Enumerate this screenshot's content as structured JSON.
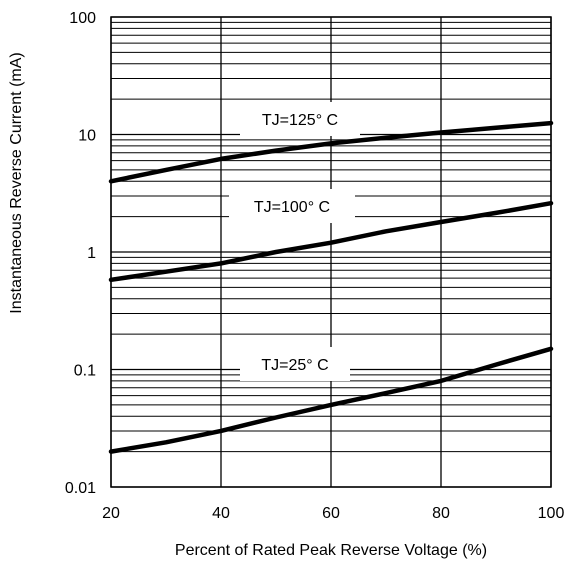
{
  "chart_data": {
    "type": "line",
    "title": "",
    "xlabel": "Percent of Rated Peak Reverse Voltage (%)",
    "ylabel": "Instantaneous Reverse Current (mA)",
    "xlim": [
      20,
      100
    ],
    "ylim": [
      0.01,
      100
    ],
    "yscale": "log",
    "grid": true,
    "x_ticks": [
      "20",
      "40",
      "60",
      "80",
      "100"
    ],
    "y_ticks": [
      "0.01",
      "0.1",
      "1",
      "10",
      "100"
    ],
    "series": [
      {
        "name": "TJ=125° C",
        "x": [
          20,
          30,
          40,
          50,
          60,
          70,
          80,
          90,
          100
        ],
        "y": [
          4.0,
          5.0,
          6.2,
          7.3,
          8.4,
          9.4,
          10.4,
          11.4,
          12.5
        ]
      },
      {
        "name": "TJ=100° C",
        "x": [
          20,
          30,
          40,
          50,
          60,
          70,
          80,
          90,
          100
        ],
        "y": [
          0.58,
          0.68,
          0.8,
          1.0,
          1.2,
          1.5,
          1.8,
          2.15,
          2.6
        ]
      },
      {
        "name": "TJ=25° C",
        "x": [
          20,
          30,
          40,
          50,
          60,
          70,
          80,
          90,
          100
        ],
        "y": [
          0.02,
          0.024,
          0.03,
          0.039,
          0.05,
          0.063,
          0.08,
          0.11,
          0.15
        ]
      }
    ],
    "colors": {
      "line": "#000000",
      "grid": "#000000",
      "background": "#ffffff"
    }
  }
}
